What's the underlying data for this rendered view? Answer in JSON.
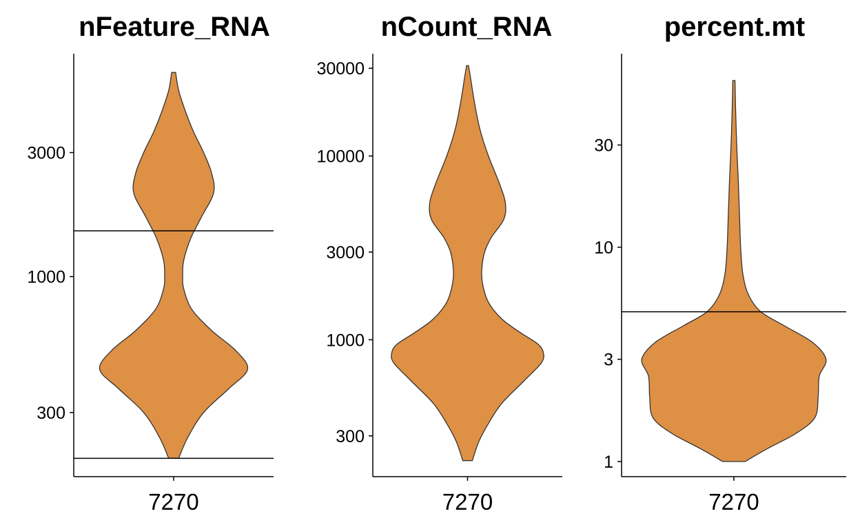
{
  "chart_data": [
    {
      "type": "violin",
      "title": "nFeature_RNA",
      "categories": [
        "7270"
      ],
      "y_scale": "log10",
      "ylim": [
        170,
        7200
      ],
      "yticks": [
        300,
        1000,
        3000
      ],
      "ytick_labels": [
        "300",
        "1000",
        "3000"
      ],
      "reference_lines": [
        1500,
        200
      ],
      "fill_color": "#DE9045",
      "violin_profile": {
        "y": [
          200,
          240,
          300,
          370,
          440,
          520,
          620,
          750,
          900,
          1000,
          1150,
          1400,
          1700,
          2100,
          2500,
          3000,
          3600,
          4300,
          5200,
          6100
        ],
        "half_width": [
          0.05,
          0.14,
          0.3,
          0.55,
          0.74,
          0.62,
          0.38,
          0.18,
          0.1,
          0.09,
          0.1,
          0.17,
          0.28,
          0.4,
          0.38,
          0.3,
          0.2,
          0.12,
          0.05,
          0.02
        ]
      }
    },
    {
      "type": "violin",
      "title": "nCount_RNA",
      "categories": [
        "7270"
      ],
      "y_scale": "log10",
      "ylim": [
        180,
        36000
      ],
      "yticks": [
        300,
        1000,
        3000,
        10000,
        30000
      ],
      "ytick_labels": [
        "300",
        "1000",
        "3000",
        "10000",
        "30000"
      ],
      "reference_lines": [],
      "fill_color": "#DE9045",
      "violin_profile": {
        "y": [
          220,
          280,
          350,
          450,
          600,
          750,
          850,
          950,
          1100,
          1300,
          1600,
          2000,
          2400,
          3000,
          3600,
          4500,
          5500,
          7000,
          10000,
          14000,
          20000,
          27000,
          31000
        ],
        "half_width": [
          0.05,
          0.12,
          0.22,
          0.36,
          0.6,
          0.78,
          0.8,
          0.74,
          0.55,
          0.36,
          0.22,
          0.16,
          0.15,
          0.18,
          0.25,
          0.38,
          0.4,
          0.34,
          0.22,
          0.13,
          0.07,
          0.03,
          0.01
        ]
      }
    },
    {
      "type": "violin",
      "title": "percent.mt",
      "categories": [
        "7270"
      ],
      "y_scale": "log10",
      "ylim": [
        0.85,
        80
      ],
      "yticks": [
        1,
        3,
        10,
        30
      ],
      "ytick_labels": [
        "1",
        "3",
        "10",
        "30"
      ],
      "reference_lines": [
        5
      ],
      "fill_color": "#DE9045",
      "violin_profile": {
        "y": [
          1.0,
          1.15,
          1.35,
          1.6,
          2.0,
          2.5,
          3.0,
          3.6,
          4.3,
          5.0,
          6.0,
          7.5,
          10,
          14,
          20,
          30,
          45,
          60
        ],
        "half_width": [
          0.1,
          0.3,
          0.55,
          0.72,
          0.75,
          0.76,
          0.82,
          0.7,
          0.45,
          0.24,
          0.13,
          0.08,
          0.06,
          0.05,
          0.04,
          0.025,
          0.015,
          0.01
        ]
      }
    }
  ]
}
